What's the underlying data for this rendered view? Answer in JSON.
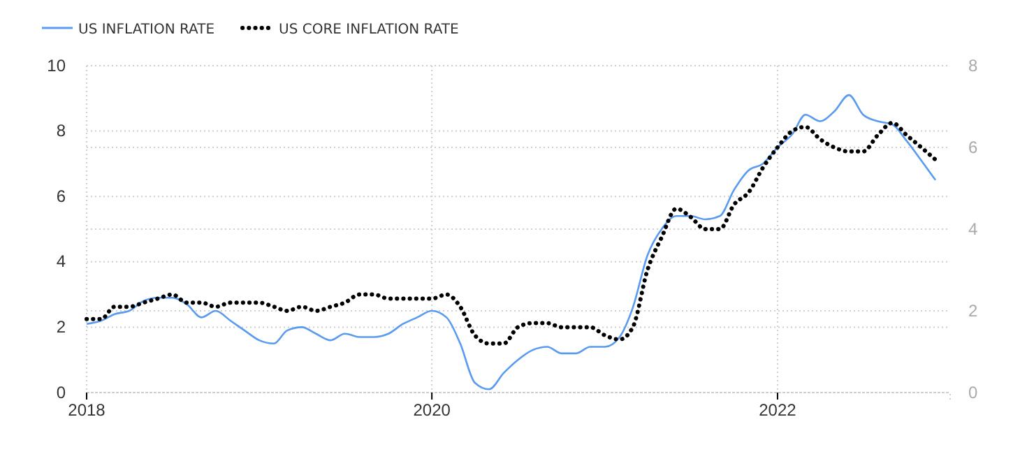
{
  "chart_data": {
    "type": "line",
    "legend": "top left",
    "grid": true,
    "x": [
      "2018-01",
      "2018-02",
      "2018-03",
      "2018-04",
      "2018-05",
      "2018-06",
      "2018-07",
      "2018-08",
      "2018-09",
      "2018-10",
      "2018-11",
      "2018-12",
      "2019-01",
      "2019-02",
      "2019-03",
      "2019-04",
      "2019-05",
      "2019-06",
      "2019-07",
      "2019-08",
      "2019-09",
      "2019-10",
      "2019-11",
      "2019-12",
      "2020-01",
      "2020-02",
      "2020-03",
      "2020-04",
      "2020-05",
      "2020-06",
      "2020-07",
      "2020-08",
      "2020-09",
      "2020-10",
      "2020-11",
      "2020-12",
      "2021-01",
      "2021-02",
      "2021-03",
      "2021-04",
      "2021-05",
      "2021-06",
      "2021-07",
      "2021-08",
      "2021-09",
      "2021-10",
      "2021-11",
      "2021-12",
      "2022-01",
      "2022-02",
      "2022-03",
      "2022-04",
      "2022-05",
      "2022-06",
      "2022-07",
      "2022-08",
      "2022-09",
      "2022-10",
      "2022-11",
      "2022-12"
    ],
    "xlim": [
      "2018-01",
      "2023-01"
    ],
    "xticks": [
      {
        "value": "2018-01",
        "label": "2018"
      },
      {
        "value": "2020-01",
        "label": "2020"
      },
      {
        "value": "2022-01",
        "label": "2022"
      }
    ],
    "ylim": [
      0,
      10
    ],
    "yticks": [
      0,
      2,
      4,
      6,
      8,
      10
    ],
    "y2lim": [
      0,
      8
    ],
    "y2ticks": [
      0,
      2,
      4,
      6,
      8
    ],
    "series": [
      {
        "name": "US INFLATION RATE",
        "color": "#5b9bef",
        "line_style": "solid",
        "values": [
          2.1,
          2.2,
          2.4,
          2.5,
          2.8,
          2.9,
          2.9,
          2.7,
          2.3,
          2.5,
          2.2,
          1.9,
          1.6,
          1.5,
          1.9,
          2.0,
          1.8,
          1.6,
          1.8,
          1.7,
          1.7,
          1.8,
          2.1,
          2.3,
          2.5,
          2.3,
          1.5,
          0.3,
          0.1,
          0.6,
          1.0,
          1.3,
          1.4,
          1.2,
          1.2,
          1.4,
          1.4,
          1.7,
          2.6,
          4.2,
          5.0,
          5.4,
          5.4,
          5.3,
          5.4,
          6.2,
          6.8,
          7.0,
          7.5,
          7.9,
          8.5,
          8.3,
          8.6,
          9.1,
          8.5,
          8.3,
          8.2,
          7.7,
          7.1,
          6.5
        ]
      },
      {
        "name": "US CORE INFLATION RATE",
        "color": "#000000",
        "line_style": "dotted",
        "axis": "y2",
        "values": [
          1.8,
          1.8,
          2.1,
          2.1,
          2.2,
          2.3,
          2.4,
          2.2,
          2.2,
          2.1,
          2.2,
          2.2,
          2.2,
          2.1,
          2.0,
          2.1,
          2.0,
          2.1,
          2.2,
          2.4,
          2.4,
          2.3,
          2.3,
          2.3,
          2.3,
          2.4,
          2.1,
          1.4,
          1.2,
          1.2,
          1.6,
          1.7,
          1.7,
          1.6,
          1.6,
          1.6,
          1.4,
          1.3,
          1.6,
          3.0,
          3.8,
          4.5,
          4.3,
          4.0,
          4.0,
          4.6,
          4.9,
          5.5,
          6.0,
          6.4,
          6.5,
          6.2,
          6.0,
          5.9,
          5.9,
          6.3,
          6.6,
          6.3,
          6.0,
          5.7
        ]
      }
    ]
  }
}
